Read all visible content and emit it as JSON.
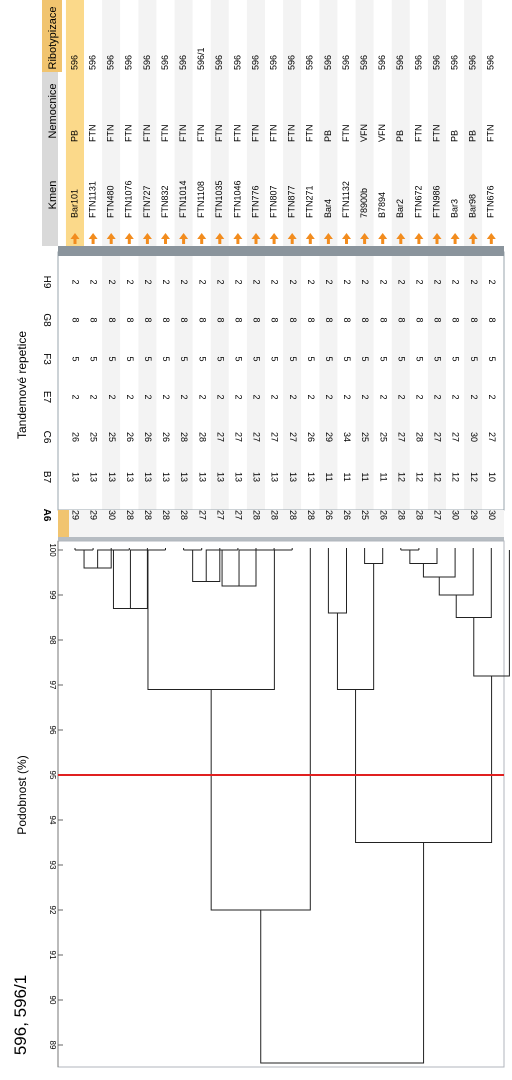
{
  "title": "596, 596/1",
  "sections": {
    "similarity": "Podobnost (%)",
    "tandem": "Tandemové repetice"
  },
  "similarity_ticks": [
    "100",
    "99",
    "98",
    "97",
    "96",
    "95",
    "94",
    "93",
    "92",
    "91",
    "90",
    "89"
  ],
  "cutoff_value": 95,
  "colors": {
    "cutoff": "#e02020",
    "selected_row": "#fbd98a",
    "header_active": "#f1c46f",
    "arrow": "#f28c1e"
  },
  "locus_columns": [
    "A6",
    "B7",
    "C6",
    "E7",
    "F3",
    "G8",
    "H9"
  ],
  "info_columns": [
    "Kmen",
    "Nemocnice",
    "Ribotypizace"
  ],
  "rows": [
    {
      "kmen": "Bar101",
      "nemocnice": "PB",
      "ribotyp": "596",
      "values": [
        29,
        13,
        26,
        2,
        5,
        8,
        2
      ],
      "selected": true
    },
    {
      "kmen": "FTN1131",
      "nemocnice": "FTN",
      "ribotyp": "596",
      "values": [
        29,
        13,
        25,
        2,
        5,
        8,
        2
      ]
    },
    {
      "kmen": "FTN480",
      "nemocnice": "FTN",
      "ribotyp": "596",
      "values": [
        30,
        13,
        25,
        2,
        5,
        8,
        2
      ]
    },
    {
      "kmen": "FTN1076",
      "nemocnice": "FTN",
      "ribotyp": "596",
      "values": [
        28,
        13,
        26,
        2,
        5,
        8,
        2
      ]
    },
    {
      "kmen": "FTN727",
      "nemocnice": "FTN",
      "ribotyp": "596",
      "values": [
        28,
        13,
        26,
        2,
        5,
        8,
        2
      ]
    },
    {
      "kmen": "FTN832",
      "nemocnice": "FTN",
      "ribotyp": "596",
      "values": [
        28,
        13,
        26,
        2,
        5,
        8,
        2
      ]
    },
    {
      "kmen": "FTN1014",
      "nemocnice": "FTN",
      "ribotyp": "596",
      "values": [
        28,
        13,
        28,
        2,
        5,
        8,
        2
      ]
    },
    {
      "kmen": "FTN1108",
      "nemocnice": "FTN",
      "ribotyp": "596/1",
      "values": [
        27,
        13,
        28,
        2,
        5,
        8,
        2
      ]
    },
    {
      "kmen": "FTN1035",
      "nemocnice": "FTN",
      "ribotyp": "596",
      "values": [
        27,
        13,
        27,
        2,
        5,
        8,
        2
      ]
    },
    {
      "kmen": "FTN1046",
      "nemocnice": "FTN",
      "ribotyp": "596",
      "values": [
        27,
        13,
        27,
        2,
        5,
        8,
        2
      ]
    },
    {
      "kmen": "FTN776",
      "nemocnice": "FTN",
      "ribotyp": "596",
      "values": [
        28,
        13,
        27,
        2,
        5,
        8,
        2
      ]
    },
    {
      "kmen": "FTN807",
      "nemocnice": "FTN",
      "ribotyp": "596",
      "values": [
        28,
        13,
        27,
        2,
        5,
        8,
        2
      ]
    },
    {
      "kmen": "FTN877",
      "nemocnice": "FTN",
      "ribotyp": "596",
      "values": [
        28,
        13,
        27,
        2,
        5,
        8,
        2
      ]
    },
    {
      "kmen": "FTN271",
      "nemocnice": "FTN",
      "ribotyp": "596",
      "values": [
        28,
        13,
        26,
        2,
        5,
        8,
        2
      ]
    },
    {
      "kmen": "Bar4",
      "nemocnice": "PB",
      "ribotyp": "596",
      "values": [
        26,
        11,
        29,
        2,
        5,
        8,
        2
      ]
    },
    {
      "kmen": "FTN1132",
      "nemocnice": "FTN",
      "ribotyp": "596",
      "values": [
        26,
        11,
        34,
        2,
        5,
        8,
        2
      ]
    },
    {
      "kmen": "78900b",
      "nemocnice": "VFN",
      "ribotyp": "596",
      "values": [
        25,
        11,
        25,
        2,
        5,
        8,
        2
      ]
    },
    {
      "kmen": "B7894",
      "nemocnice": "VFN",
      "ribotyp": "596",
      "values": [
        26,
        11,
        25,
        2,
        5,
        8,
        2
      ]
    },
    {
      "kmen": "Bar2",
      "nemocnice": "PB",
      "ribotyp": "596",
      "values": [
        28,
        12,
        27,
        2,
        5,
        8,
        2
      ]
    },
    {
      "kmen": "FTN672",
      "nemocnice": "FTN",
      "ribotyp": "596",
      "values": [
        28,
        12,
        28,
        2,
        5,
        8,
        2
      ]
    },
    {
      "kmen": "FTN986",
      "nemocnice": "FTN",
      "ribotyp": "596",
      "values": [
        27,
        12,
        27,
        2,
        5,
        8,
        2
      ]
    },
    {
      "kmen": "Bar3",
      "nemocnice": "PB",
      "ribotyp": "596",
      "values": [
        30,
        12,
        27,
        2,
        5,
        8,
        2
      ]
    },
    {
      "kmen": "Bar98",
      "nemocnice": "PB",
      "ribotyp": "596",
      "values": [
        29,
        12,
        30,
        2,
        5,
        8,
        2
      ]
    },
    {
      "kmen": "FTN676",
      "nemocnice": "FTN",
      "ribotyp": "596",
      "values": [
        30,
        10,
        27,
        2,
        5,
        8,
        2
      ]
    }
  ],
  "dendrogram": {
    "nodes": [
      {
        "id": "n1",
        "children": [
          0,
          1
        ],
        "similarity": 100.0
      },
      {
        "id": "n2",
        "children": [
          "n1",
          2
        ],
        "similarity": 99.6
      },
      {
        "id": "n3",
        "children": [
          "n2",
          3
        ],
        "similarity": 100.0
      },
      {
        "id": "n4",
        "children": [
          "n3",
          4
        ],
        "similarity": 98.7
      },
      {
        "id": "n5",
        "children": [
          "n4",
          5
        ],
        "similarity": 100.0
      },
      {
        "id": "n6",
        "children": [
          6,
          7
        ],
        "similarity": 100.0
      },
      {
        "id": "n7",
        "children": [
          "n6",
          8
        ],
        "similarity": 99.3
      },
      {
        "id": "n8",
        "children": [
          "n7",
          9
        ],
        "similarity": 100.0
      },
      {
        "id": "n9",
        "children": [
          "n8",
          10
        ],
        "similarity": 99.2
      },
      {
        "id": "n10",
        "children": [
          "n9",
          11
        ],
        "similarity": 100.0
      },
      {
        "id": "n11",
        "children": [
          "n10",
          12
        ],
        "similarity": 100.0
      },
      {
        "id": "n12",
        "children": [
          "n5",
          "n11"
        ],
        "similarity": 96.9
      },
      {
        "id": "n13",
        "children": [
          "n12",
          13
        ],
        "similarity": 92.0
      },
      {
        "id": "n14",
        "children": [
          14,
          15
        ],
        "similarity": 98.6
      },
      {
        "id": "n15",
        "children": [
          16,
          17
        ],
        "similarity": 99.7
      },
      {
        "id": "n16",
        "children": [
          "n14",
          "n15"
        ],
        "similarity": 96.9
      },
      {
        "id": "n17",
        "children": [
          18,
          19
        ],
        "similarity": 100.0
      },
      {
        "id": "n18",
        "children": [
          "n17",
          20
        ],
        "similarity": 99.7
      },
      {
        "id": "n19",
        "children": [
          "n18",
          21
        ],
        "similarity": 99.4
      },
      {
        "id": "n20",
        "children": [
          "n19",
          22
        ],
        "similarity": 99.0
      },
      {
        "id": "n21",
        "children": [
          "n20",
          23
        ],
        "similarity": 98.5
      },
      {
        "id": "n22",
        "children": [
          "n21",
          24
        ],
        "similarity": 97.2
      },
      {
        "id": "n23",
        "children": [
          "n16",
          "n22"
        ],
        "similarity": 93.5
      },
      {
        "id": "n24",
        "children": [
          "n13",
          "n23"
        ],
        "similarity": 88.6
      }
    ]
  }
}
